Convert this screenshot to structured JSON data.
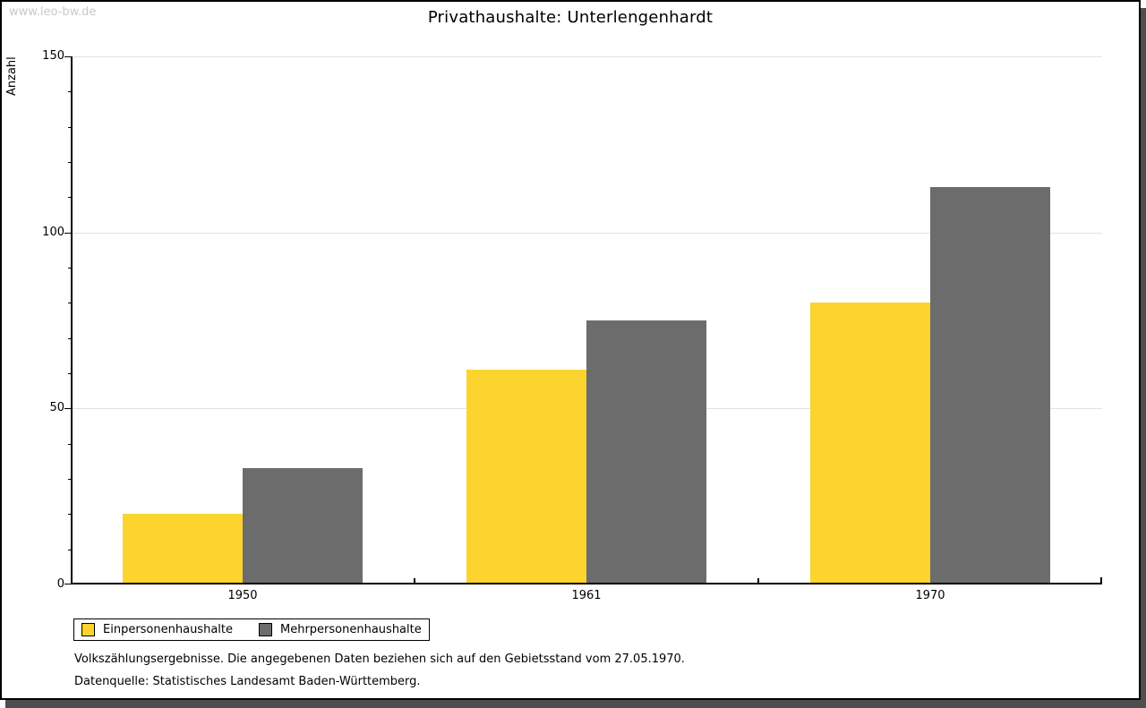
{
  "window": {
    "watermark": "www.leo-bw.de"
  },
  "title": "Privathaushalte: Unterlengenhardt",
  "chart_data": {
    "type": "bar",
    "title": "Privathaushalte: Unterlengenhardt",
    "categories": [
      "1950",
      "1961",
      "1970"
    ],
    "series": [
      {
        "name": "Einpersonenhaushalte",
        "color": "#fcd42d",
        "values": [
          20,
          61,
          80
        ]
      },
      {
        "name": "Mehrpersonenhaushalte",
        "color": "#6c6c6c",
        "values": [
          33,
          75,
          113
        ]
      }
    ],
    "xlabel": "",
    "ylabel": "Anzahl",
    "ylim": [
      0,
      150
    ],
    "yticks_major": [
      0,
      50,
      100,
      150
    ],
    "ytick_minor_step": 10,
    "grid": "horizontal-major",
    "legend_position": "bottom-left",
    "colors": {
      "axis": "#000000",
      "gridline": "#e1e1e1",
      "background": "#ffffff",
      "shadow": "#4e4e4e",
      "watermark": "#c9c9c9"
    }
  },
  "footer": {
    "line1": "Volkszählungsergebnisse. Die angegebenen Daten beziehen sich auf den Gebietsstand vom 27.05.1970.",
    "line2": "Datenquelle: Statistisches Landesamt Baden-Württemberg."
  }
}
